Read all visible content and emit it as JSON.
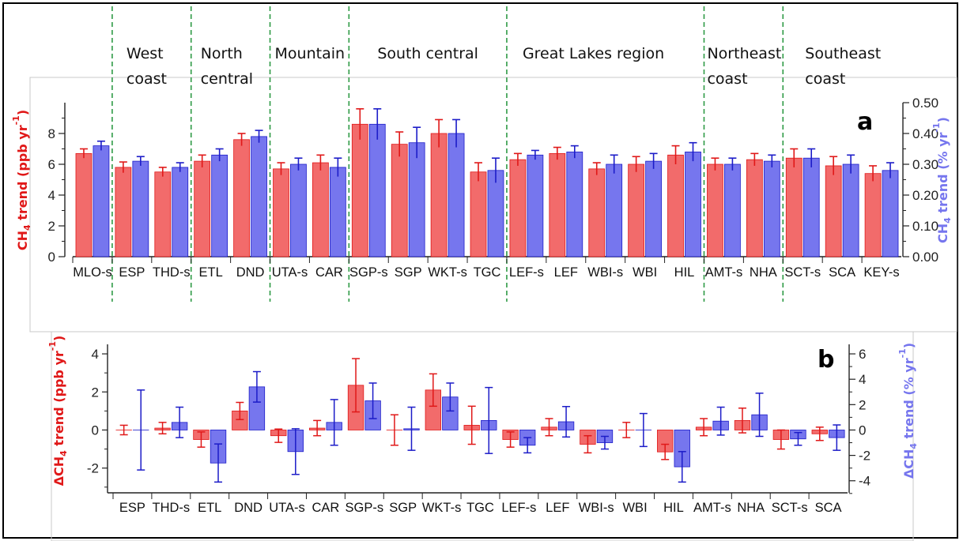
{
  "regions": [
    "West coast",
    "North central",
    "Mountain",
    "South central",
    "Great Lakes region",
    "Northeast coast",
    "Southeast coast"
  ],
  "colors": {
    "red": "#f26b6b",
    "red_stroke": "#e01818",
    "blue": "#7676ee",
    "blue_stroke": "#1c1cc8",
    "divider": "#2e9a45"
  },
  "chart_data": [
    {
      "type": "bar",
      "panel": "a",
      "ylabel_left": "CH4 trend (ppb yr-1)",
      "ylabel_right": "CH4 trend (% yr-1)",
      "ylim_left": [
        0,
        10
      ],
      "ylim_right": [
        0,
        0.5
      ],
      "yticks_left": [
        "0",
        "2",
        "4",
        "6",
        "8"
      ],
      "yticks_right": [
        "0.00",
        "0.10",
        "0.20",
        "0.30",
        "0.40",
        "0.50"
      ],
      "categories": [
        "MLO-s",
        "ESP",
        "THD-s",
        "ETL",
        "DND",
        "UTA-s",
        "CAR",
        "SGP-s",
        "SGP",
        "WKT-s",
        "TGC",
        "LEF-s",
        "LEF",
        "WBI-s",
        "WBI",
        "HIL",
        "AMT-s",
        "NHA",
        "SCT-s",
        "SCA",
        "KEY-s"
      ],
      "series": [
        {
          "name": "CH4 trend (ppb yr-1)",
          "axis": "left",
          "values": [
            6.7,
            5.8,
            5.5,
            6.2,
            7.6,
            5.7,
            6.1,
            8.6,
            7.3,
            8.0,
            5.5,
            6.3,
            6.7,
            5.7,
            6.0,
            6.6,
            6.0,
            6.3,
            6.4,
            5.9,
            5.4
          ],
          "errors": [
            0.3,
            0.35,
            0.3,
            0.4,
            0.4,
            0.4,
            0.5,
            1.0,
            0.8,
            0.9,
            0.6,
            0.4,
            0.4,
            0.4,
            0.5,
            0.6,
            0.4,
            0.4,
            0.6,
            0.6,
            0.5
          ]
        },
        {
          "name": "CH4 trend (% yr-1)",
          "axis": "right",
          "values": [
            0.36,
            0.31,
            0.29,
            0.33,
            0.39,
            0.3,
            0.29,
            0.43,
            0.37,
            0.4,
            0.28,
            0.33,
            0.34,
            0.3,
            0.31,
            0.34,
            0.3,
            0.31,
            0.32,
            0.3,
            0.28
          ],
          "errors": [
            0.015,
            0.015,
            0.015,
            0.02,
            0.02,
            0.02,
            0.03,
            0.05,
            0.05,
            0.045,
            0.04,
            0.015,
            0.02,
            0.03,
            0.025,
            0.03,
            0.02,
            0.02,
            0.03,
            0.03,
            0.025
          ]
        }
      ]
    },
    {
      "type": "bar",
      "panel": "b",
      "ylabel_left": "ΔCH4 trend (ppb yr-1)",
      "ylabel_right": "ΔCH4 trend (% yr-1)",
      "ylim_left": [
        -3.3,
        4.5
      ],
      "ylim_right": [
        -4.95,
        6.75
      ],
      "yticks_left": [
        "-2",
        "0",
        "2",
        "4"
      ],
      "yticks_right": [
        "-4",
        "-2",
        "0",
        "2",
        "4",
        "6"
      ],
      "categories": [
        "ESP",
        "THD-s",
        "ETL",
        "DND",
        "UTA-s",
        "CAR",
        "SGP-s",
        "SGP",
        "WKT-s",
        "TGC",
        "LEF-s",
        "LEF",
        "WBI-s",
        "WBI",
        "HIL",
        "AMT-s",
        "NHA",
        "SCT-s",
        "SCA"
      ],
      "series": [
        {
          "name": "ΔCH4 trend (ppb yr-1)",
          "axis": "left",
          "values": [
            0.0,
            0.1,
            -0.5,
            1.0,
            -0.3,
            0.1,
            2.35,
            0.0,
            2.1,
            0.25,
            -0.5,
            0.15,
            -0.75,
            0.0,
            -1.15,
            0.15,
            0.5,
            -0.5,
            -0.2
          ],
          "errors": [
            0.25,
            0.3,
            0.4,
            0.45,
            0.35,
            0.4,
            1.4,
            0.8,
            0.85,
            1.0,
            0.4,
            0.45,
            0.45,
            0.4,
            0.4,
            0.45,
            0.65,
            0.5,
            0.35
          ]
        },
        {
          "name": "ΔCH4 trend (% yr-1)",
          "axis": "right",
          "values": [
            0.0,
            0.6,
            -2.6,
            3.4,
            -1.7,
            0.6,
            2.3,
            0.1,
            2.6,
            0.75,
            -1.2,
            0.65,
            -1.0,
            0.0,
            -2.9,
            0.7,
            1.2,
            -0.7,
            -0.6
          ],
          "errors": [
            3.15,
            1.2,
            1.5,
            1.2,
            1.8,
            1.8,
            1.4,
            1.7,
            1.1,
            2.6,
            0.6,
            1.2,
            0.5,
            1.3,
            1.2,
            1.1,
            1.7,
            0.5,
            1.0
          ]
        }
      ]
    }
  ]
}
